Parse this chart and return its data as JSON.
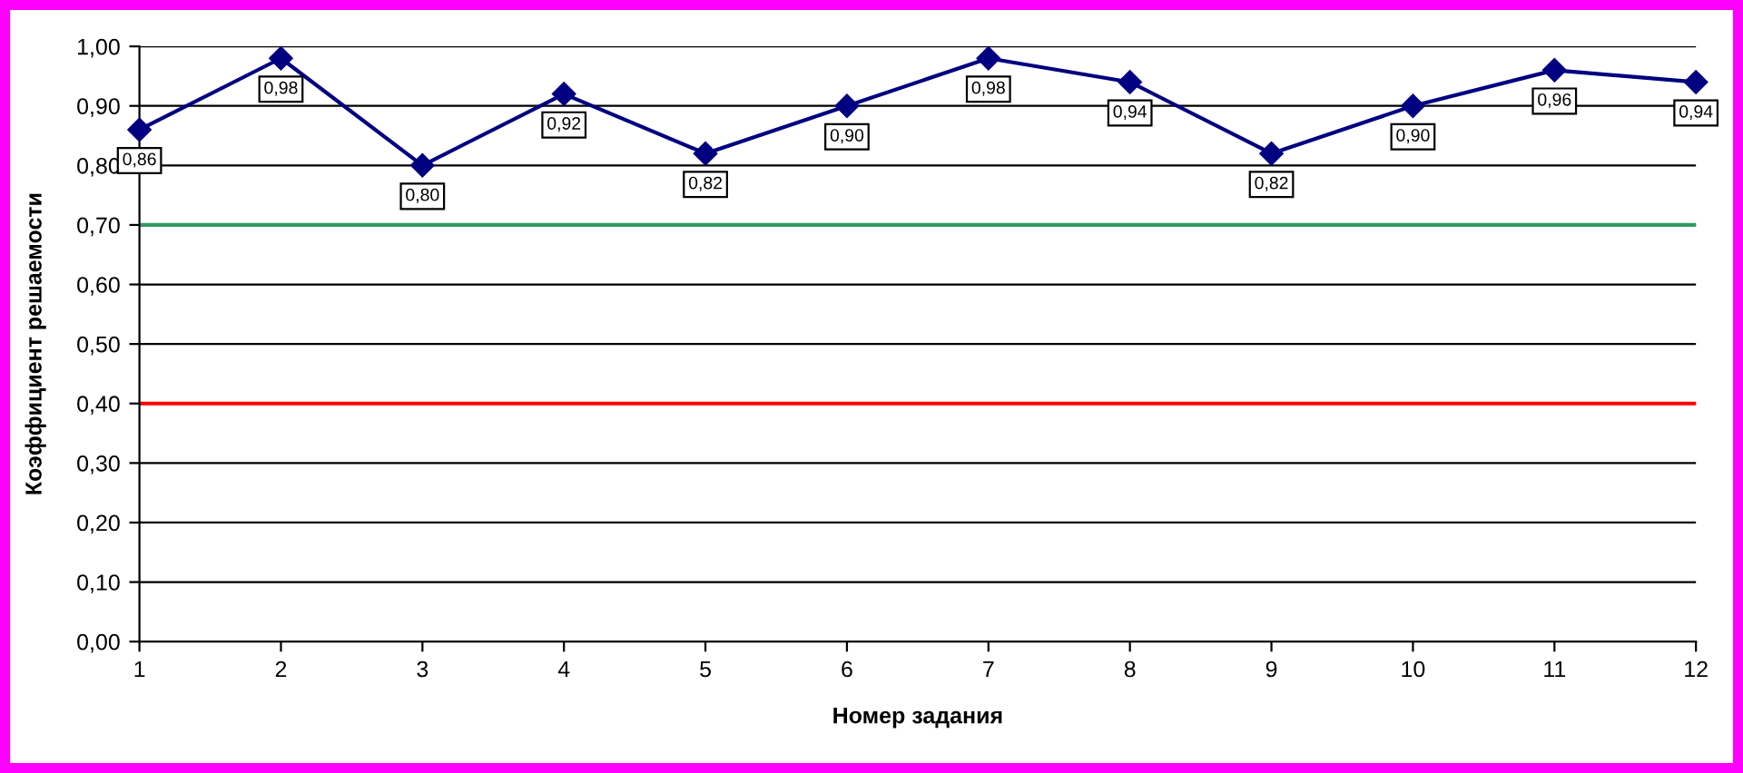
{
  "chart_data": {
    "type": "line",
    "xlabel": "Номер задания",
    "ylabel": "Коэффициент решаемости",
    "x": [
      1,
      2,
      3,
      4,
      5,
      6,
      7,
      8,
      9,
      10,
      11,
      12
    ],
    "series": [
      {
        "color": "#000080",
        "values": [
          0.86,
          0.98,
          0.8,
          0.92,
          0.82,
          0.9,
          0.98,
          0.94,
          0.82,
          0.9,
          0.96,
          0.94
        ],
        "value_labels": [
          "0,86",
          "0,98",
          "0,80",
          "0,92",
          "0,82",
          "0,90",
          "0,98",
          "0,94",
          "0,82",
          "0,90",
          "0,96",
          "0,94"
        ]
      }
    ],
    "xlim": [
      1,
      12
    ],
    "xticks": [
      1,
      2,
      3,
      4,
      5,
      6,
      7,
      8,
      9,
      10,
      11,
      12
    ],
    "ylim": [
      0,
      1
    ],
    "yticks": [
      {
        "value": 0,
        "label": "0,00"
      },
      {
        "value": 0.1,
        "label": "0,10"
      },
      {
        "value": 0.2,
        "label": "0,20"
      },
      {
        "value": 0.3,
        "label": "0,30"
      },
      {
        "value": 0.4,
        "label": "0,40"
      },
      {
        "value": 0.5,
        "label": "0,50"
      },
      {
        "value": 0.6,
        "label": "0,60"
      },
      {
        "value": 0.7,
        "label": "0,70"
      },
      {
        "value": 0.8,
        "label": "0,80"
      },
      {
        "value": 0.9,
        "label": "0,90"
      },
      {
        "value": 1,
        "label": "1,00"
      }
    ],
    "ref_lines": [
      {
        "axis": "y",
        "value": 0.7,
        "color": "#339966"
      },
      {
        "axis": "y",
        "value": 0.4,
        "color": "#ff0000"
      }
    ],
    "grid": "y",
    "marker": "diamond",
    "line_style": "solid"
  }
}
